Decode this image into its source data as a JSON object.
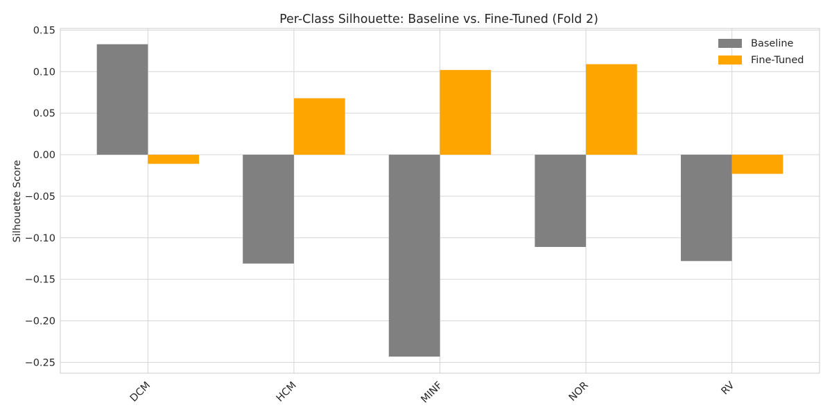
{
  "chart_data": {
    "type": "bar",
    "title": "Per-Class Silhouette: Baseline vs. Fine-Tuned (Fold 2)",
    "xlabel": "",
    "ylabel": "Silhouette Score",
    "categories": [
      "DCM",
      "HCM",
      "MINF",
      "NOR",
      "RV"
    ],
    "series": [
      {
        "name": "Baseline",
        "color": "#808080",
        "values": [
          0.133,
          -0.131,
          -0.243,
          -0.111,
          -0.128
        ]
      },
      {
        "name": "Fine-Tuned",
        "color": "#FFA500",
        "values": [
          -0.011,
          0.068,
          0.102,
          0.109,
          -0.023
        ]
      }
    ],
    "ylim": [
      -0.263,
      0.152
    ],
    "yticks": [
      {
        "value": 0.15,
        "label": "0.15"
      },
      {
        "value": 0.1,
        "label": "0.10"
      },
      {
        "value": 0.05,
        "label": "0.05"
      },
      {
        "value": 0.0,
        "label": "0.00"
      },
      {
        "value": -0.05,
        "label": "−0.05"
      },
      {
        "value": -0.1,
        "label": "−0.10"
      },
      {
        "value": -0.15,
        "label": "−0.15"
      },
      {
        "value": -0.2,
        "label": "−0.20"
      },
      {
        "value": -0.25,
        "label": "−0.25"
      }
    ],
    "grid": true,
    "legend_position": "top-right",
    "x_tick_rotation_deg": 45
  }
}
